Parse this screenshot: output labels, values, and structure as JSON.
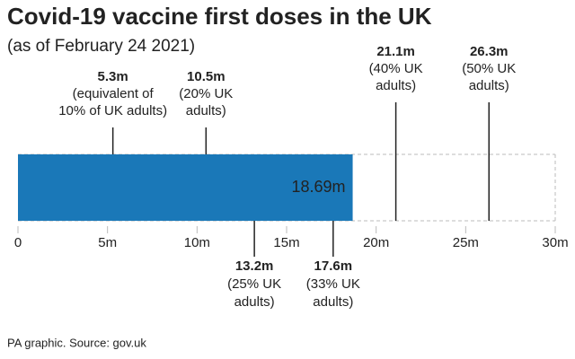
{
  "chart_data": {
    "type": "bar",
    "orientation": "horizontal",
    "title": "Covid-19 vaccine first doses in the UK",
    "subtitle": "(as of February 24 2021)",
    "source": "PA graphic. Source: gov.uk",
    "values": [
      18.69
    ],
    "value_labels": [
      "18.69m"
    ],
    "color": "#1a78b8",
    "xlim": [
      0,
      30
    ],
    "xticks": [
      0,
      {
        "value": 5,
        "label": "5m"
      },
      {
        "value": 10,
        "label": "10m"
      },
      {
        "value": 15,
        "label": "15m"
      },
      {
        "value": 20,
        "label": "20m"
      },
      {
        "value": 25,
        "label": "25m"
      },
      {
        "value": 30,
        "label": "30m"
      }
    ],
    "annotations": [
      {
        "value": 5.3,
        "label": "5.3m",
        "note": [
          "(equivalent of",
          "10% of UK adults)"
        ],
        "position": "above"
      },
      {
        "value": 10.5,
        "label": "10.5m",
        "note": [
          "(20% UK",
          "adults)"
        ],
        "position": "above"
      },
      {
        "value": 13.2,
        "label": "13.2m",
        "note": [
          "(25% UK",
          "adults)"
        ],
        "position": "below"
      },
      {
        "value": 17.6,
        "label": "17.6m",
        "note": [
          "(33% UK",
          "adults)"
        ],
        "position": "below"
      },
      {
        "value": 21.1,
        "label": "21.1m",
        "note": [
          "(40% UK",
          "adults)"
        ],
        "position": "above"
      },
      {
        "value": 26.3,
        "label": "26.3m",
        "note": [
          "(50% UK",
          "adults)"
        ],
        "position": "above"
      }
    ]
  }
}
